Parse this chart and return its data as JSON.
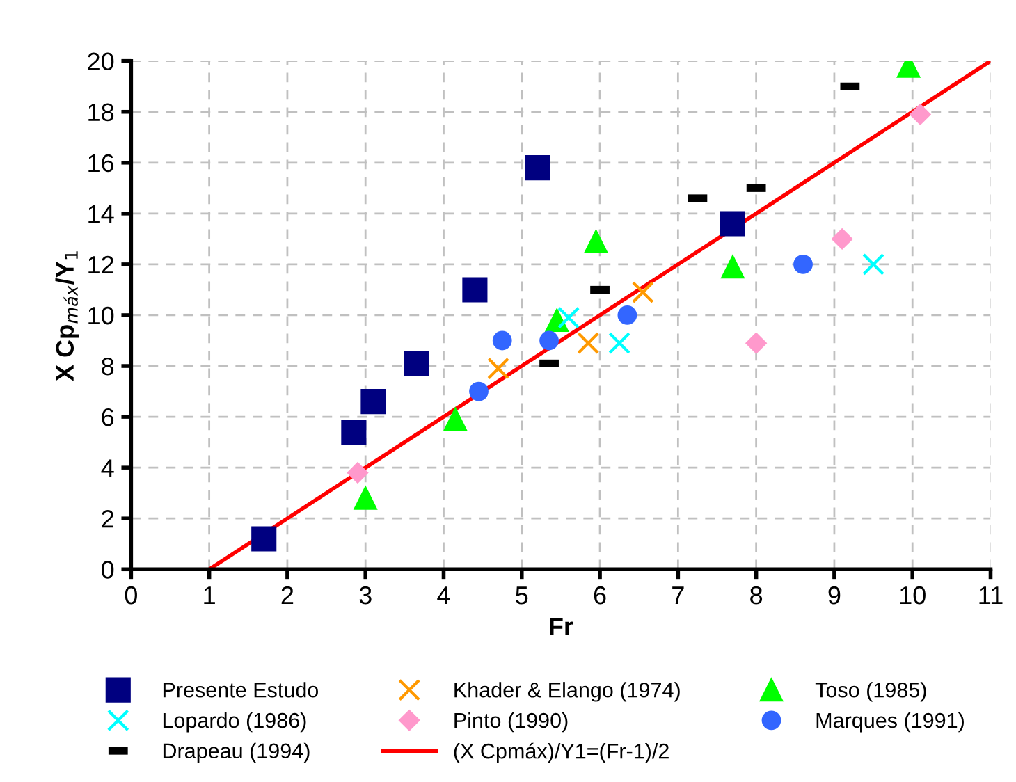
{
  "chart_data": {
    "type": "scatter",
    "xlabel": "Fr",
    "ylabel": "X Cp$_{máx}$/Y$_{1}$",
    "xlim": [
      0,
      11
    ],
    "ylim": [
      0,
      20
    ],
    "xticks": [
      0,
      1,
      2,
      3,
      4,
      5,
      6,
      7,
      8,
      9,
      10,
      11
    ],
    "yticks": [
      0,
      2,
      4,
      6,
      8,
      10,
      12,
      14,
      16,
      18,
      20
    ],
    "grid": true,
    "legend": "bottom",
    "series": [
      {
        "name": "Presente Estudo",
        "color": "#000080",
        "marker": "square",
        "x": [
          1.7,
          2.85,
          3.1,
          3.65,
          4.4,
          5.2,
          7.7
        ],
        "values": [
          1.2,
          5.4,
          6.6,
          8.1,
          11,
          15.8,
          13.6
        ]
      },
      {
        "name": "Khader & Elango (1974)",
        "color": "#ff9900",
        "marker": "cross",
        "x": [
          4.7,
          5.85,
          6.55
        ],
        "values": [
          7.9,
          8.9,
          10.9
        ]
      },
      {
        "name": "Toso (1985)",
        "color": "#00ff00",
        "marker": "triangle",
        "x": [
          3.0,
          4.15,
          5.45,
          5.95,
          7.7,
          9.95
        ],
        "values": [
          2.8,
          5.9,
          9.8,
          12.9,
          11.9,
          19.8
        ]
      },
      {
        "name": "Lopardo (1986)",
        "color": "#00ffff",
        "marker": "cross",
        "x": [
          5.6,
          6.25,
          9.5
        ],
        "values": [
          9.9,
          8.9,
          12
        ]
      },
      {
        "name": "Pinto (1990)",
        "color": "#ff99cc",
        "marker": "diamond",
        "x": [
          2.9,
          8.0,
          9.1,
          10.1
        ],
        "values": [
          3.8,
          8.9,
          13.0,
          17.9
        ]
      },
      {
        "name": "Marques (1991)",
        "color": "#3366ff",
        "marker": "circle",
        "x": [
          4.45,
          4.75,
          5.35,
          6.35,
          8.6
        ],
        "values": [
          7,
          9,
          9,
          10,
          12
        ]
      },
      {
        "name": "Drapeau (1994)",
        "color": "#000000",
        "x": [
          5.35,
          6.0,
          7.25,
          8.0,
          9.2
        ],
        "values": [
          8.1,
          11.0,
          14.6,
          15.0,
          19
        ]
      },
      {
        "name": "(X Cpmáx)/Y1=(Fr-1)/2",
        "color": "#ff0000",
        "type": "line",
        "marker": "none",
        "line_style": "solid",
        "x": [
          1,
          11
        ],
        "values": [
          0,
          20
        ]
      }
    ]
  }
}
